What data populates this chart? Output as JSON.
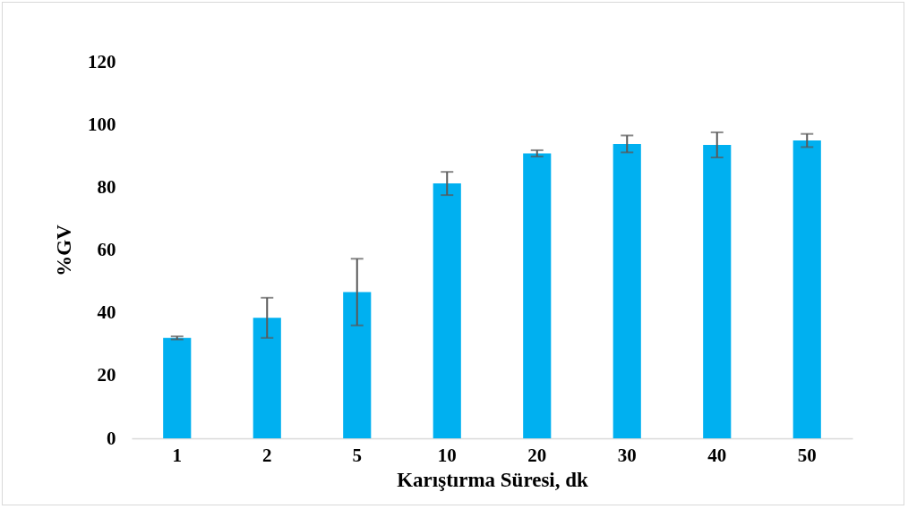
{
  "chart_data": {
    "type": "bar",
    "xlabel": "Karıştırma Süresi, dk",
    "ylabel": "%GV",
    "categories": [
      "1",
      "2",
      "5",
      "10",
      "20",
      "30",
      "40",
      "50"
    ],
    "values": [
      32,
      38.4,
      46.6,
      81.2,
      90.8,
      93.8,
      93.5,
      94.9
    ],
    "errors": [
      0.5,
      6.4,
      10.6,
      3.7,
      1,
      2.7,
      4,
      2.1
    ],
    "color": "#00b0f0",
    "ylim": [
      0,
      120
    ],
    "yticks": [
      0,
      20,
      40,
      60,
      80,
      100,
      120
    ],
    "grid": false
  }
}
